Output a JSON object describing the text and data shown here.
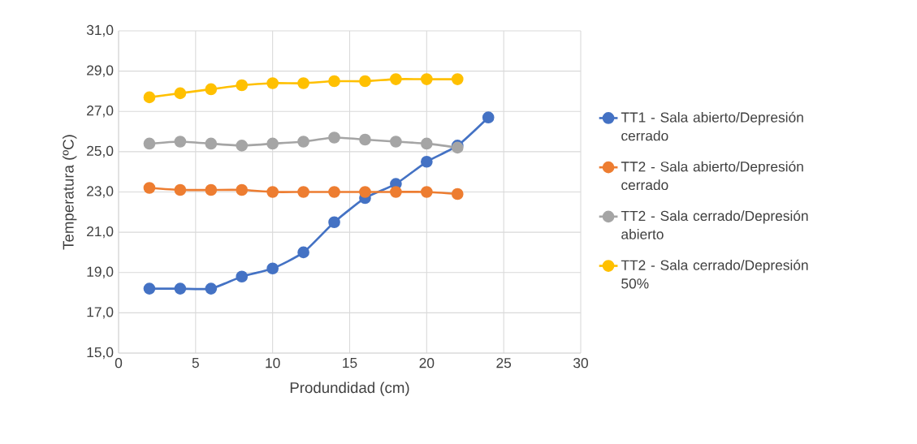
{
  "chart_data": {
    "type": "line",
    "xlabel": "Produndidad (cm)",
    "ylabel": "Temperatura (ºC)",
    "xlim": [
      0,
      30
    ],
    "xticks": [
      0,
      5,
      10,
      15,
      20,
      25,
      30
    ],
    "ylim": [
      15,
      31
    ],
    "yticks": [
      {
        "value": 15,
        "label": "15,0"
      },
      {
        "value": 17,
        "label": "17,0"
      },
      {
        "value": 19,
        "label": "19,0"
      },
      {
        "value": 21,
        "label": "21,0"
      },
      {
        "value": 23,
        "label": "23,0"
      },
      {
        "value": 25,
        "label": "25,0"
      },
      {
        "value": 27,
        "label": "27,0"
      },
      {
        "value": 29,
        "label": "29,0"
      },
      {
        "value": 31,
        "label": "31,0"
      }
    ],
    "grid": true,
    "legend": "right",
    "marker": "circle",
    "line_style": "solid",
    "series": [
      {
        "name": "TT1 - Sala abierto/Depresión cerrado",
        "color": "#4472c4",
        "x": [
          2,
          4,
          6,
          8,
          10,
          12,
          14,
          16,
          18,
          20,
          22,
          24
        ],
        "values": [
          18.2,
          18.2,
          18.2,
          18.8,
          19.2,
          20.0,
          21.5,
          22.7,
          23.4,
          24.5,
          25.3,
          26.7
        ]
      },
      {
        "name": "TT2 - Sala abierto/Depresión cerrado",
        "color": "#ed7d31",
        "x": [
          2,
          4,
          6,
          8,
          10,
          12,
          14,
          16,
          18,
          20,
          22
        ],
        "values": [
          23.2,
          23.1,
          23.1,
          23.1,
          23.0,
          23.0,
          23.0,
          23.0,
          23.0,
          23.0,
          22.9
        ]
      },
      {
        "name": "TT2 - Sala cerrado/Depresión abierto",
        "color": "#a5a5a5",
        "x": [
          2,
          4,
          6,
          8,
          10,
          12,
          14,
          16,
          18,
          20,
          22
        ],
        "values": [
          25.4,
          25.5,
          25.4,
          25.3,
          25.4,
          25.5,
          25.7,
          25.6,
          25.5,
          25.4,
          25.2
        ]
      },
      {
        "name": "TT2 - Sala cerrado/Depresión 50%",
        "color": "#ffc000",
        "x": [
          2,
          4,
          6,
          8,
          10,
          12,
          14,
          16,
          18,
          20,
          22
        ],
        "values": [
          27.7,
          27.9,
          28.1,
          28.3,
          28.4,
          28.4,
          28.5,
          28.5,
          28.6,
          28.6,
          28.6
        ]
      }
    ]
  }
}
